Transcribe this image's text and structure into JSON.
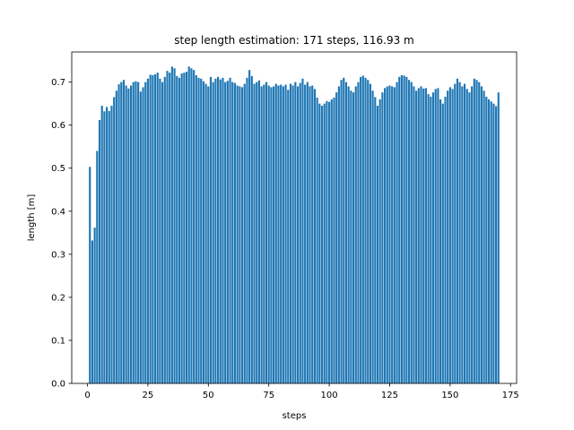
{
  "chart_data": {
    "type": "bar",
    "title": "step length estimation: 171 steps, 116.93 m",
    "xlabel": "steps",
    "ylabel": "length [m]",
    "xlim": [
      -6.5,
      177.5
    ],
    "ylim": [
      0.0,
      0.77
    ],
    "xticks": [
      0,
      25,
      50,
      75,
      100,
      125,
      150,
      175
    ],
    "xtick_labels": [
      "0",
      "25",
      "50",
      "75",
      "100",
      "125",
      "150",
      "175"
    ],
    "yticks": [
      0.0,
      0.1,
      0.2,
      0.3,
      0.4,
      0.5,
      0.6,
      0.7
    ],
    "ytick_labels": [
      "0.0",
      "0.1",
      "0.2",
      "0.3",
      "0.4",
      "0.5",
      "0.6",
      "0.7"
    ],
    "grid": false,
    "legend": "none",
    "bar_color": "#1f77b4",
    "x_start": 1,
    "values": [
      0.503,
      0.332,
      0.362,
      0.54,
      0.612,
      0.645,
      0.632,
      0.642,
      0.633,
      0.645,
      0.665,
      0.68,
      0.695,
      0.7,
      0.705,
      0.692,
      0.685,
      0.692,
      0.7,
      0.702,
      0.7,
      0.678,
      0.688,
      0.7,
      0.708,
      0.717,
      0.716,
      0.718,
      0.722,
      0.708,
      0.7,
      0.712,
      0.726,
      0.722,
      0.736,
      0.732,
      0.714,
      0.71,
      0.72,
      0.722,
      0.724,
      0.736,
      0.732,
      0.728,
      0.716,
      0.71,
      0.708,
      0.702,
      0.696,
      0.69,
      0.712,
      0.7,
      0.708,
      0.712,
      0.706,
      0.71,
      0.7,
      0.703,
      0.71,
      0.7,
      0.698,
      0.692,
      0.69,
      0.688,
      0.696,
      0.71,
      0.728,
      0.714,
      0.696,
      0.7,
      0.704,
      0.69,
      0.694,
      0.7,
      0.692,
      0.688,
      0.69,
      0.696,
      0.692,
      0.694,
      0.69,
      0.694,
      0.682,
      0.696,
      0.692,
      0.7,
      0.69,
      0.698,
      0.708,
      0.694,
      0.7,
      0.69,
      0.692,
      0.684,
      0.664,
      0.65,
      0.645,
      0.65,
      0.656,
      0.654,
      0.66,
      0.664,
      0.676,
      0.69,
      0.705,
      0.71,
      0.7,
      0.69,
      0.68,
      0.676,
      0.69,
      0.7,
      0.712,
      0.715,
      0.71,
      0.705,
      0.696,
      0.68,
      0.665,
      0.645,
      0.66,
      0.676,
      0.686,
      0.69,
      0.692,
      0.69,
      0.688,
      0.7,
      0.712,
      0.716,
      0.715,
      0.712,
      0.705,
      0.7,
      0.69,
      0.68,
      0.686,
      0.69,
      0.685,
      0.686,
      0.672,
      0.666,
      0.676,
      0.684,
      0.686,
      0.66,
      0.65,
      0.666,
      0.68,
      0.688,
      0.684,
      0.696,
      0.708,
      0.7,
      0.69,
      0.696,
      0.684,
      0.676,
      0.69,
      0.708,
      0.705,
      0.7,
      0.69,
      0.68,
      0.666,
      0.66,
      0.655,
      0.65,
      0.644,
      0.676
    ]
  }
}
